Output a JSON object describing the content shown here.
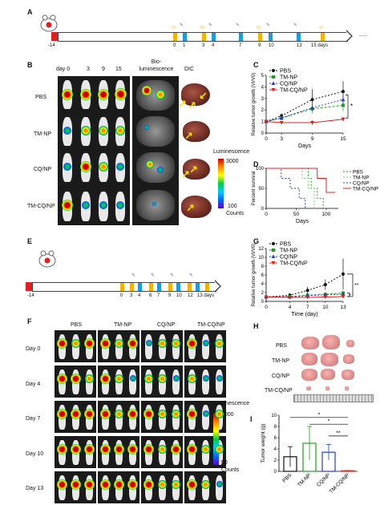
{
  "panels": {
    "A": "A",
    "B": "B",
    "C": "C",
    "D": "D",
    "E": "E",
    "F": "F",
    "G": "G",
    "H": "H",
    "I": "I"
  },
  "timeline_a": {
    "start": "-14",
    "days": [
      "0",
      "1",
      "3",
      "4",
      "7",
      "9",
      "10",
      "13",
      "15 days"
    ],
    "ellipsis": "......"
  },
  "timeline_e": {
    "start": "-14",
    "days": [
      "0",
      "3",
      "4",
      "6",
      "7",
      "9",
      "10",
      "12",
      "13 days"
    ]
  },
  "panel_b": {
    "days": [
      "day 0",
      "3",
      "9",
      "15"
    ],
    "col_bio": "Bio-\nluminescence",
    "col_dic": "DIC",
    "rows": [
      "PBS",
      "TM-NP",
      "CQ/NP",
      "TM-CQ/NP"
    ],
    "colorbar_title": "Luminescence",
    "colorbar_max": "3000",
    "colorbar_min": "100",
    "colorbar_unit": "Counts"
  },
  "panel_f": {
    "groups": [
      "PBS",
      "TM-NP",
      "CQ/NP",
      "TM-CQ/NP"
    ],
    "days": [
      "Day 0",
      "Day 4",
      "Day 7",
      "Day 10",
      "Day 13"
    ],
    "colorbar_title": "Luminescence",
    "colorbar_max": "3000",
    "colorbar_min": "50",
    "colorbar_unit": "Counts"
  },
  "panel_h": {
    "rows": [
      "PBS",
      "TM-NP",
      "CQ/NP",
      "TM-CQ/NP"
    ]
  },
  "colors": {
    "pbs": "#111111",
    "tmnp": "#1fa01f",
    "cqnp": "#1f3fd0",
    "tmcqnp": "#e02020",
    "timeline_yellow": "#f2b400",
    "timeline_blue": "#1e9be0",
    "start_red": "#e02020"
  },
  "chart_data": [
    {
      "type": "line",
      "panel": "C",
      "xlabel": "Days",
      "ylabel": "Relative tumor growth (Vt/V0)",
      "x": [
        0,
        3,
        9,
        15
      ],
      "xticks": [
        "0",
        "3",
        "9",
        "15"
      ],
      "ylim": [
        0,
        5
      ],
      "yticks": [
        "0",
        "1",
        "2",
        "3",
        "4",
        "5"
      ],
      "series": [
        {
          "name": "PBS",
          "values": [
            1.0,
            1.5,
            2.9,
            3.6
          ],
          "errors": [
            0.1,
            0.2,
            0.9,
            0.9
          ]
        },
        {
          "name": "TM-NP",
          "values": [
            1.0,
            1.3,
            2.1,
            2.4
          ],
          "errors": [
            0.1,
            0.2,
            0.4,
            0.5
          ]
        },
        {
          "name": "CQ/NP",
          "values": [
            1.0,
            1.3,
            2.2,
            2.9
          ],
          "errors": [
            0.1,
            0.2,
            0.3,
            0.4
          ]
        },
        {
          "name": "TM-CQ/NP",
          "values": [
            1.0,
            0.9,
            0.9,
            1.2
          ],
          "errors": [
            0.05,
            0.1,
            0.2,
            0.2
          ]
        }
      ],
      "annotations": [
        "*"
      ]
    },
    {
      "type": "line",
      "panel": "D",
      "xlabel": "Days",
      "ylabel": "Percent survival",
      "xticks": [
        "0",
        "50",
        "100"
      ],
      "yticks": [
        "0",
        "50",
        "100"
      ],
      "ylim": [
        0,
        100
      ],
      "xlim": [
        0,
        120
      ],
      "series": [
        {
          "name": "PBS",
          "x": [
            0,
            45,
            70,
            75,
            85,
            95
          ],
          "values": [
            100,
            100,
            75,
            50,
            25,
            0
          ]
        },
        {
          "name": "TM-NP",
          "x": [
            0,
            20,
            60,
            70,
            80
          ],
          "values": [
            100,
            100,
            75,
            50,
            0
          ]
        },
        {
          "name": "CQ/NP",
          "x": [
            0,
            25,
            40,
            55,
            65
          ],
          "values": [
            100,
            75,
            50,
            25,
            0
          ]
        },
        {
          "name": "TM-CQ/NP",
          "x": [
            0,
            45,
            85,
            100,
            115
          ],
          "values": [
            100,
            100,
            75,
            40,
            40
          ]
        }
      ]
    },
    {
      "type": "line",
      "panel": "G",
      "xlabel": "Time (day)",
      "ylabel": "Relative tumor growth (Vt/V0)",
      "x": [
        0,
        4,
        7,
        10,
        13
      ],
      "xticks": [
        "0",
        "4",
        "7",
        "10",
        "13"
      ],
      "ylim": [
        0,
        12
      ],
      "yticks": [
        "0",
        "2",
        "4",
        "6",
        "8",
        "10",
        "12"
      ],
      "series": [
        {
          "name": "PBS",
          "values": [
            1.0,
            1.4,
            2.5,
            3.8,
            6.2
          ],
          "errors": [
            0.1,
            0.4,
            0.8,
            1.2,
            3.5
          ]
        },
        {
          "name": "TM-NP",
          "values": [
            1.0,
            1.1,
            1.4,
            1.6,
            1.9
          ],
          "errors": [
            0.1,
            0.2,
            0.3,
            0.4,
            0.5
          ]
        },
        {
          "name": "CQ/NP",
          "values": [
            1.0,
            1.0,
            1.3,
            1.5,
            1.6
          ],
          "errors": [
            0.1,
            0.2,
            0.3,
            0.3,
            0.4
          ]
        },
        {
          "name": "TM-CQ/NP",
          "values": [
            1.0,
            0.9,
            0.9,
            1.0,
            1.1
          ],
          "errors": [
            0.05,
            0.1,
            0.1,
            0.2,
            0.2
          ]
        }
      ],
      "annotations": [
        "**",
        "*"
      ]
    },
    {
      "type": "bar",
      "panel": "I",
      "ylabel": "Tumor weight (g)",
      "categories": [
        "PBS",
        "TM-NP",
        "CQ/NP",
        "TM-CQ/NP"
      ],
      "values": [
        2.6,
        5.0,
        3.4,
        0.1
      ],
      "errors": [
        1.8,
        3.0,
        1.4,
        0.05
      ],
      "ylim": [
        0,
        10
      ],
      "yticks": [
        "0",
        "2",
        "4",
        "6",
        "8",
        "10"
      ],
      "annotations": [
        "*",
        "*",
        "**"
      ]
    }
  ]
}
